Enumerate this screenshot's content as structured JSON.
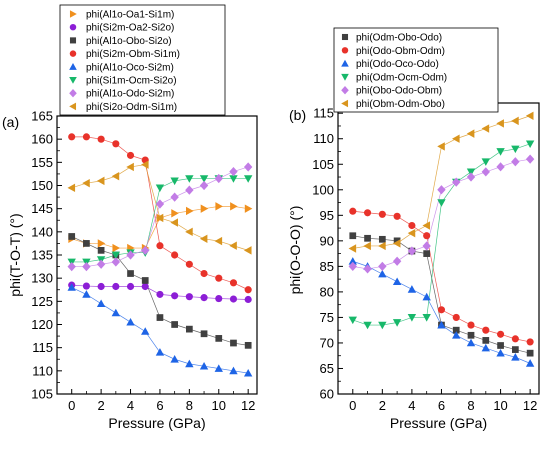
{
  "chart_data": [
    {
      "type": "scatter",
      "panel_label": "(a)",
      "xlabel": "Pressure (GPa)",
      "ylabel": "phi(T-O-T) (°)",
      "xlim": [
        -1,
        12.6
      ],
      "ylim": [
        105,
        165
      ],
      "xticks": [
        0,
        2,
        4,
        6,
        8,
        10,
        12
      ],
      "yticks": [
        105,
        110,
        115,
        120,
        125,
        130,
        135,
        140,
        145,
        150,
        155,
        160,
        165
      ],
      "x": [
        0,
        1,
        2,
        3,
        4,
        5,
        6,
        7,
        8,
        9,
        10,
        11,
        12
      ],
      "legend_position": "top-left, outside plot",
      "series": [
        {
          "name": "phi(Al1o-Oa1-Si1m)",
          "color": "#f0901e",
          "marker": "triangle-right",
          "values": [
            138.5,
            137.5,
            137.5,
            136.5,
            136.5,
            136.5,
            143,
            144,
            144.5,
            145,
            145.5,
            145.5,
            145
          ]
        },
        {
          "name": "phi(Si2m-Oa2-Si2o)",
          "color": "#8c1ed6",
          "marker": "circle",
          "values": [
            128.5,
            128.3,
            128.2,
            128.2,
            128.2,
            128.2,
            126.5,
            126.2,
            126,
            125.8,
            125.6,
            125.5,
            125.4
          ]
        },
        {
          "name": "phi(Al1o-Obo-Si2o)",
          "color": "#404040",
          "marker": "square",
          "values": [
            139,
            137.5,
            136,
            135,
            131,
            129.5,
            121.5,
            120,
            119,
            118,
            117,
            116,
            115.5
          ]
        },
        {
          "name": "phi(Si2m-Obm-Si1m)",
          "color": "#e8322a",
          "marker": "circle",
          "values": [
            160.5,
            160.5,
            160,
            159,
            156.5,
            155.5,
            137,
            135,
            133,
            131,
            130,
            129,
            127.5
          ]
        },
        {
          "name": "phi(Al1o-Oco-Si2m)",
          "color": "#1e64e6",
          "marker": "triangle-up",
          "values": [
            128,
            126.5,
            124.5,
            122.5,
            120.5,
            118.5,
            114,
            112.5,
            111.5,
            111,
            110.5,
            110,
            109.5
          ]
        },
        {
          "name": "phi(Si1m-Ocm-Si2o)",
          "color": "#17b86a",
          "marker": "triangle-down",
          "values": [
            133.5,
            133.5,
            134,
            135,
            135.5,
            135.5,
            149.5,
            151,
            151.5,
            151.5,
            151.5,
            151.5,
            151.5
          ]
        },
        {
          "name": "phi(Al1o-Odo-Si2m)",
          "color": "#c27ce6",
          "marker": "diamond",
          "values": [
            132.5,
            132.5,
            133,
            133.5,
            135,
            136,
            146,
            147.5,
            149,
            150,
            151.5,
            153,
            154
          ]
        },
        {
          "name": "phi(Si2o-Odm-Si1m)",
          "color": "#d9951e",
          "marker": "triangle-left",
          "values": [
            149.5,
            150.5,
            151,
            152,
            154,
            154.5,
            143,
            142,
            140,
            138.5,
            138,
            137,
            136
          ]
        }
      ]
    },
    {
      "type": "scatter",
      "panel_label": "(b)",
      "xlabel": "Pressure (GPa)",
      "ylabel": "phi(O-O-O)  (°)",
      "xlim": [
        -1,
        12.6
      ],
      "ylim": [
        60,
        117
      ],
      "xticks": [
        0,
        2,
        4,
        6,
        8,
        10,
        12
      ],
      "yticks": [
        60,
        65,
        70,
        75,
        80,
        85,
        90,
        95,
        100,
        105,
        110,
        115
      ],
      "x": [
        0,
        1,
        2,
        3,
        4,
        5,
        6,
        7,
        8,
        9,
        10,
        11,
        12
      ],
      "legend_position": "top, outside plot",
      "series": [
        {
          "name": "phi(Odm-Obo-Odo)",
          "color": "#404040",
          "marker": "square",
          "values": [
            91,
            90.5,
            90.3,
            90,
            88,
            87.5,
            73.5,
            72.5,
            71.5,
            70.5,
            69.5,
            68.7,
            68
          ]
        },
        {
          "name": "phi(Odo-Obm-Odm)",
          "color": "#e8322a",
          "marker": "circle",
          "values": [
            95.8,
            95.5,
            95.2,
            94.8,
            93,
            91,
            76.5,
            75,
            73.5,
            72.5,
            71.7,
            70.8,
            70.2
          ]
        },
        {
          "name": "phi(Odo-Oco-Odo)",
          "color": "#1e64e6",
          "marker": "triangle-up",
          "values": [
            86,
            85,
            83.5,
            82,
            80.5,
            79,
            73.5,
            71.5,
            70,
            69,
            68,
            67.2,
            66
          ]
        },
        {
          "name": "phi(Odm-Ocm-Odm)",
          "color": "#17b86a",
          "marker": "triangle-down",
          "values": [
            74.5,
            73.5,
            73.5,
            74,
            75,
            75,
            97.5,
            101.5,
            103.5,
            105.5,
            107.5,
            108,
            109
          ]
        },
        {
          "name": "phi(Obo-Odo-Obm)",
          "color": "#c27ce6",
          "marker": "diamond",
          "values": [
            85,
            84.5,
            85,
            86,
            88,
            89,
            100,
            101.5,
            102.5,
            103.5,
            104.5,
            105.5,
            106
          ]
        },
        {
          "name": "phi(Obm-Odm-Obo)",
          "color": "#d9951e",
          "marker": "triangle-left",
          "values": [
            88.5,
            89,
            89,
            89.5,
            91.5,
            93,
            108.5,
            110,
            111,
            112,
            113,
            113.5,
            114.5
          ]
        }
      ]
    }
  ]
}
